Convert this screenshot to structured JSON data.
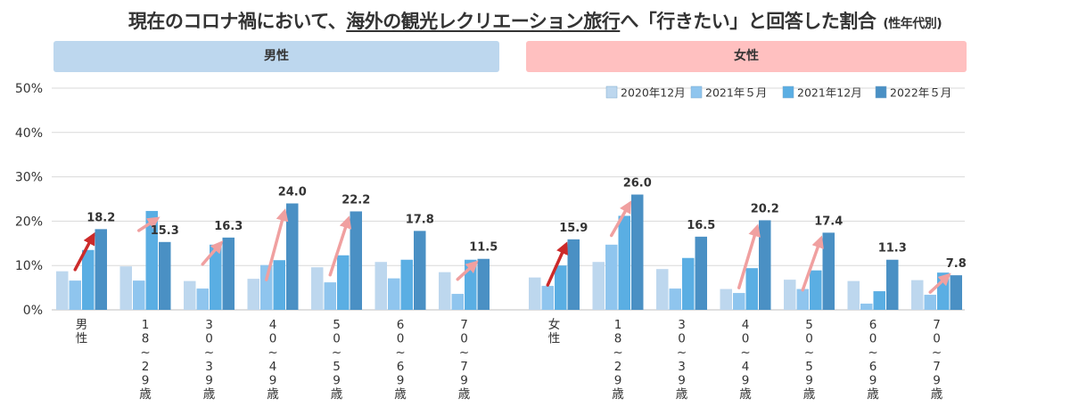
{
  "title": {
    "prefix": "現在のコロナ禍において、",
    "highlight": "海外の観光レクリエーション旅行",
    "suffix": "へ「行きたい」と回答した割合",
    "subtitle": "(性年代別)"
  },
  "colors": {
    "male_header_bg": "#bdd7ee",
    "female_header_bg": "#ffc0c0",
    "series": [
      "#bdd7ee",
      "#8fc5ee",
      "#5aaee3",
      "#4a90c4"
    ],
    "arrow_dark": "#cc2a2a",
    "arrow_light": "#f0a0a0",
    "grid": "#d9d9d9",
    "axis_text": "#333333"
  },
  "chart_data": {
    "type": "bar",
    "ylim": [
      0,
      50
    ],
    "yticks": [
      "0%",
      "10%",
      "20%",
      "30%",
      "40%",
      "50%"
    ],
    "grid": true,
    "legend_position": "top-right",
    "groups": [
      {
        "name": "男性",
        "categories": [
          "男性",
          "18~29歳",
          "30~39歳",
          "40~49歳",
          "50~59歳",
          "60~69歳",
          "70~79歳"
        ]
      },
      {
        "name": "女性",
        "categories": [
          "女性",
          "18~29歳",
          "30~39歳",
          "40~49歳",
          "50~59歳",
          "60~69歳",
          "70~79歳"
        ]
      }
    ],
    "series": [
      {
        "name": "2020年12月",
        "male": [
          8.7,
          9.8,
          6.5,
          7.0,
          9.6,
          10.8,
          8.5
        ],
        "female": [
          7.3,
          10.8,
          9.2,
          4.7,
          6.8,
          6.5,
          6.7
        ]
      },
      {
        "name": "2021年５月",
        "male": [
          6.6,
          6.6,
          4.8,
          10.1,
          6.2,
          7.1,
          3.6
        ],
        "female": [
          5.4,
          14.7,
          4.8,
          3.8,
          4.7,
          1.4,
          3.4
        ]
      },
      {
        "name": "2021年12月",
        "male": [
          13.5,
          22.3,
          14.7,
          11.2,
          12.3,
          11.3,
          11.3
        ],
        "female": [
          10.0,
          21.2,
          11.7,
          9.4,
          8.9,
          4.2,
          8.4
        ]
      },
      {
        "name": "2022年５月",
        "male": [
          18.2,
          15.3,
          16.3,
          24.0,
          22.2,
          17.8,
          11.5
        ],
        "female": [
          15.9,
          26.0,
          16.5,
          20.2,
          17.4,
          11.3,
          7.8
        ]
      }
    ],
    "data_labels": {
      "male": [
        "18.2",
        "15.3",
        "16.3",
        "24.0",
        "22.2",
        "17.8",
        "11.5"
      ],
      "female": [
        "15.9",
        "26.0",
        "16.5",
        "20.2",
        "17.4",
        "11.3",
        "7.8"
      ]
    },
    "arrows": {
      "male": [
        "dark",
        "light",
        "light",
        "light",
        "light",
        "none",
        "light"
      ],
      "female": [
        "dark",
        "light",
        "none",
        "light",
        "light",
        "none",
        "light"
      ]
    }
  }
}
